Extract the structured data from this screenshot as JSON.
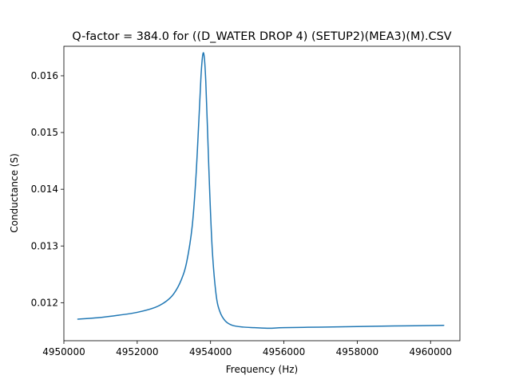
{
  "chart_data": {
    "type": "line",
    "title": "Q-factor = 384.0 for ((D_WATER DROP 4) (SETUP2)(MEA3)(M).CSV",
    "xlabel": "Frequency (Hz)",
    "ylabel": "Conductance (S)",
    "xlim": [
      4950000,
      4960800
    ],
    "ylim": [
      0.01133,
      0.01652
    ],
    "xticks": [
      4950000,
      4952000,
      4954000,
      4956000,
      4958000,
      4960000
    ],
    "xtick_labels": [
      "4950000",
      "4952000",
      "4954000",
      "4956000",
      "4958000",
      "4960000"
    ],
    "yticks": [
      0.012,
      0.013,
      0.014,
      0.015,
      0.016
    ],
    "ytick_labels": [
      "0.012",
      "0.013",
      "0.014",
      "0.015",
      "0.016"
    ],
    "grid": false,
    "color": "#1f77b4",
    "series": [
      {
        "x": [
          4950380,
          4951000,
          4951500,
          4952000,
          4952500,
          4952800,
          4953000,
          4953200,
          4953350,
          4953500,
          4953600,
          4953680,
          4953740,
          4953790,
          4953830,
          4953870,
          4953920,
          4953980,
          4954050,
          4954150,
          4954250,
          4954400,
          4954600,
          4954900,
          4955200,
          4955600,
          4956000,
          4957000,
          4958000,
          4959000,
          4960360
        ],
        "y": [
          0.01171,
          0.01174,
          0.01178,
          0.01183,
          0.01192,
          0.01203,
          0.01216,
          0.0124,
          0.01272,
          0.01335,
          0.0142,
          0.0152,
          0.016,
          0.01638,
          0.01632,
          0.0159,
          0.015,
          0.0139,
          0.0129,
          0.01215,
          0.01185,
          0.01168,
          0.0116,
          0.01157,
          0.01156,
          0.01155,
          0.01156,
          0.01157,
          0.01158,
          0.01159,
          0.0116
        ]
      }
    ]
  }
}
